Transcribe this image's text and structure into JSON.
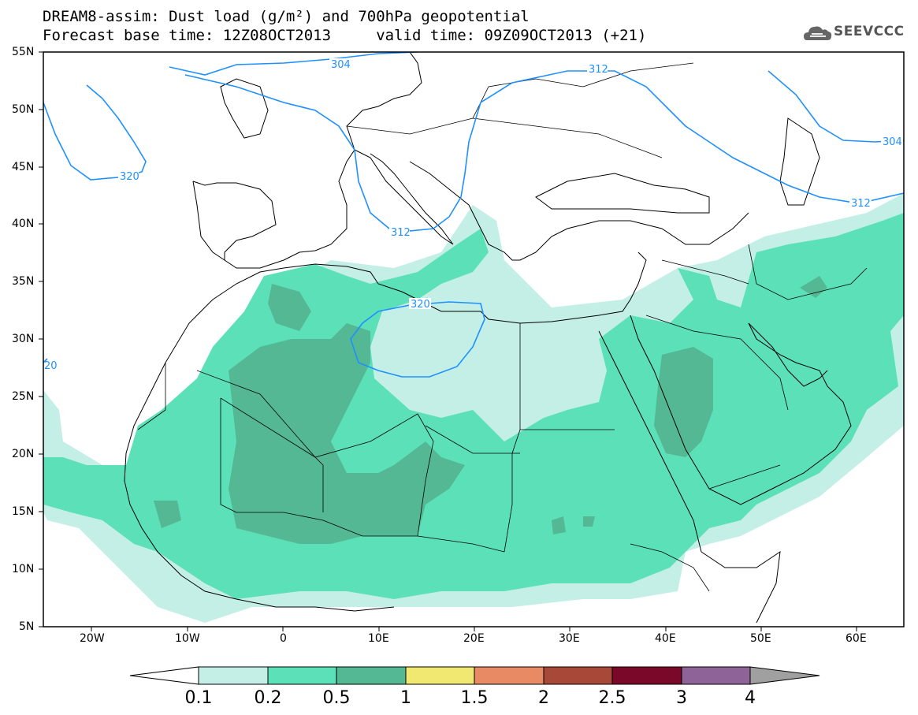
{
  "title": {
    "line1": "DREAM8-assim: Dust load (g/m²) and 700hPa geopotential",
    "line2": "Forecast base time: 12Z08OCT2013     valid time: 09Z09OCT2013 (+21)"
  },
  "logo": {
    "text": "SEEVCCC",
    "icon": "cloud-icon"
  },
  "axes": {
    "lat_labels": [
      "55N",
      "50N",
      "45N",
      "40N",
      "35N",
      "30N",
      "25N",
      "20N",
      "15N",
      "10N",
      "5N"
    ],
    "lon_labels": [
      "20W",
      "10W",
      "0",
      "10E",
      "20E",
      "30E",
      "40E",
      "50E",
      "60E"
    ],
    "lat_range": [
      5,
      55
    ],
    "lon_range": [
      -25,
      65
    ]
  },
  "colorbar": {
    "levels": [
      "0.1",
      "0.2",
      "0.5",
      "1",
      "1.5",
      "2",
      "2.5",
      "3",
      "4"
    ],
    "colors": [
      "#c4efe6",
      "#5ce0b8",
      "#54b894",
      "#f0e870",
      "#e88a64",
      "#a84838",
      "#7a0828",
      "#8e6498"
    ],
    "extend_colors": {
      "low": "#ffffff",
      "high": "#a0a0a0"
    }
  },
  "contours": {
    "labels": [
      "304",
      "312",
      "320",
      "312",
      "304",
      "312",
      "320",
      "20"
    ]
  },
  "colors": {
    "coast": "#000000",
    "contour": "#1e90ff",
    "light": "#c4efe6",
    "mid": "#5ce0b8",
    "dark": "#54b894"
  }
}
